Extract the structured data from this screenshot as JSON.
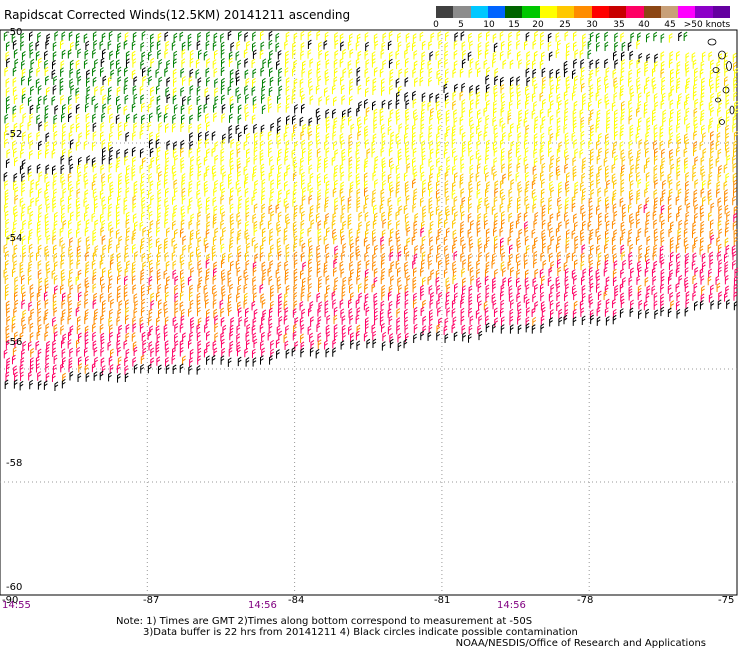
{
  "title": "Rapidscat Corrected Winds(12.5KM) 20141211 ascending",
  "legend": {
    "labels": [
      "0",
      "5",
      "10",
      "15",
      "20",
      "25",
      "30",
      "35",
      "40",
      "45",
      ">50 knots"
    ],
    "colors": [
      "#404040",
      "#8c8c8c",
      "#00c8ff",
      "#0064ff",
      "#006400",
      "#00c800",
      "#ffff00",
      "#ffc800",
      "#ff8c00",
      "#ff0000",
      "#c80000",
      "#ff0064",
      "#8c4614",
      "#c8a078",
      "#ff00ff",
      "#8c00c8",
      "#6400a0"
    ]
  },
  "axes": {
    "lat_labels": [
      "-50",
      "-52",
      "-54",
      "-56",
      "-58",
      "-60"
    ],
    "lon_labels": [
      "-90",
      "-87",
      "-84",
      "-81",
      "-78",
      "-75"
    ],
    "time_labels": [
      "14:55",
      "14:56",
      "14:56"
    ]
  },
  "chart_data": {
    "type": "wind-barb-map",
    "lat_range": [
      -60,
      -50
    ],
    "lon_range": [
      -90,
      -75
    ],
    "grid": true,
    "swath_speed_bands_knots": [
      {
        "band": "north",
        "speed_min": 15,
        "speed_max": 20,
        "color": "#008000"
      },
      {
        "band": "upper",
        "speed_min": 20,
        "speed_max": 25,
        "color": "#ffff00"
      },
      {
        "band": "middle",
        "speed_min": 25,
        "speed_max": 30,
        "color": "#ffc800"
      },
      {
        "band": "lower",
        "speed_min": 30,
        "speed_max": 35,
        "color": "#ff8c00"
      },
      {
        "band": "south",
        "speed_min": 35,
        "speed_max": 45,
        "color": "#ff0064"
      }
    ]
  },
  "notes": {
    "line1": "Note: 1) Times are GMT 2)Times along bottom correspond to measurement at -50S",
    "line2": "3)Data buffer is 22 hrs from 20141211 4) Black circles indicate possible contamination"
  },
  "credit": "NOAA/NESDIS/Office of Research and Applications"
}
